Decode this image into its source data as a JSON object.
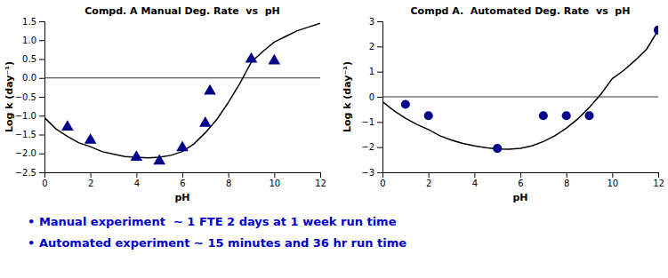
{
  "chart_data": [
    {
      "type": "scatter",
      "title": "Compd. A Manual Deg. Rate  vs  pH",
      "xlabel": "pH",
      "ylabel": "Log k (day⁻¹)",
      "xlim": [
        0,
        12
      ],
      "ylim": [
        -2.5,
        1.5
      ],
      "xticks": [
        0,
        2,
        4,
        6,
        8,
        10,
        12
      ],
      "yticks": [
        {
          "value": -2.5,
          "label": "−2.5"
        },
        {
          "value": -2,
          "label": "−2.0"
        },
        {
          "value": -1.5,
          "label": "−1.5"
        },
        {
          "value": -1,
          "label": "−1.0"
        },
        {
          "value": -0.5,
          "label": "−0.5"
        },
        {
          "value": 0,
          "label": "0.0"
        },
        {
          "value": 0.5,
          "label": "0.5"
        },
        {
          "value": 1,
          "label": "1.0"
        },
        {
          "value": 1.5,
          "label": "1.5"
        }
      ],
      "grid": false,
      "hline": 0,
      "series": [
        {
          "type": "scatter",
          "marker": "triangle-up",
          "color": "#00008B",
          "x": [
            1,
            2,
            4,
            5,
            6,
            7,
            7.2,
            9,
            10
          ],
          "values": [
            -1.3,
            -1.65,
            -2.1,
            -2.2,
            -1.85,
            -1.2,
            -0.35,
            0.5,
            0.45
          ]
        },
        {
          "type": "line",
          "color": "#000000",
          "x": [
            0,
            0.5,
            1,
            1.5,
            2,
            2.5,
            3,
            3.5,
            4,
            4.5,
            5,
            5.5,
            6,
            6.5,
            7,
            7.5,
            8,
            8.5,
            9,
            9.5,
            10,
            10.5,
            11,
            11.5,
            12
          ],
          "values": [
            -1.05,
            -1.35,
            -1.55,
            -1.72,
            -1.82,
            -1.95,
            -2.02,
            -2.08,
            -2.1,
            -2.12,
            -2.1,
            -2.05,
            -1.95,
            -1.75,
            -1.45,
            -1.1,
            -0.65,
            -0.15,
            0.42,
            0.7,
            0.95,
            1.1,
            1.25,
            1.35,
            1.45
          ]
        }
      ]
    },
    {
      "type": "scatter",
      "title": "Compd A.  Automated Deg. Rate  vs  pH",
      "xlabel": "pH",
      "ylabel": "Log k (day⁻¹)",
      "xlim": [
        0,
        12
      ],
      "ylim": [
        -3,
        3
      ],
      "xticks": [
        0,
        2,
        4,
        6,
        8,
        10,
        12
      ],
      "yticks": [
        -3,
        -2,
        -1,
        0,
        1,
        2,
        3
      ],
      "grid": false,
      "hline": 0,
      "series": [
        {
          "type": "scatter",
          "marker": "circle",
          "color": "#00008B",
          "x": [
            1,
            2,
            5,
            7,
            8,
            9,
            12
          ],
          "values": [
            -0.3,
            -0.75,
            -2.05,
            -0.75,
            -0.75,
            -0.75,
            2.65
          ]
        },
        {
          "type": "line",
          "color": "#000000",
          "x": [
            0,
            0.5,
            1,
            1.5,
            2,
            2.5,
            3,
            3.5,
            4,
            4.5,
            5,
            5.5,
            6,
            6.5,
            7,
            7.5,
            8,
            8.5,
            9,
            9.5,
            10,
            10.5,
            11,
            11.5,
            12
          ],
          "values": [
            -0.2,
            -0.55,
            -0.85,
            -1.1,
            -1.3,
            -1.55,
            -1.72,
            -1.85,
            -1.95,
            -2.02,
            -2.07,
            -2.08,
            -2.05,
            -1.95,
            -1.78,
            -1.55,
            -1.25,
            -0.88,
            -0.42,
            0.1,
            0.72,
            1.05,
            1.45,
            1.9,
            2.65
          ]
        }
      ]
    }
  ],
  "annotations": {
    "color": "#0000CC",
    "lines": [
      "  • Manual experiment  ∼ 1 FTE 2 days at 1 week run time",
      "  • Automated experiment ∼ 15 minutes and 36 hr run time"
    ]
  }
}
